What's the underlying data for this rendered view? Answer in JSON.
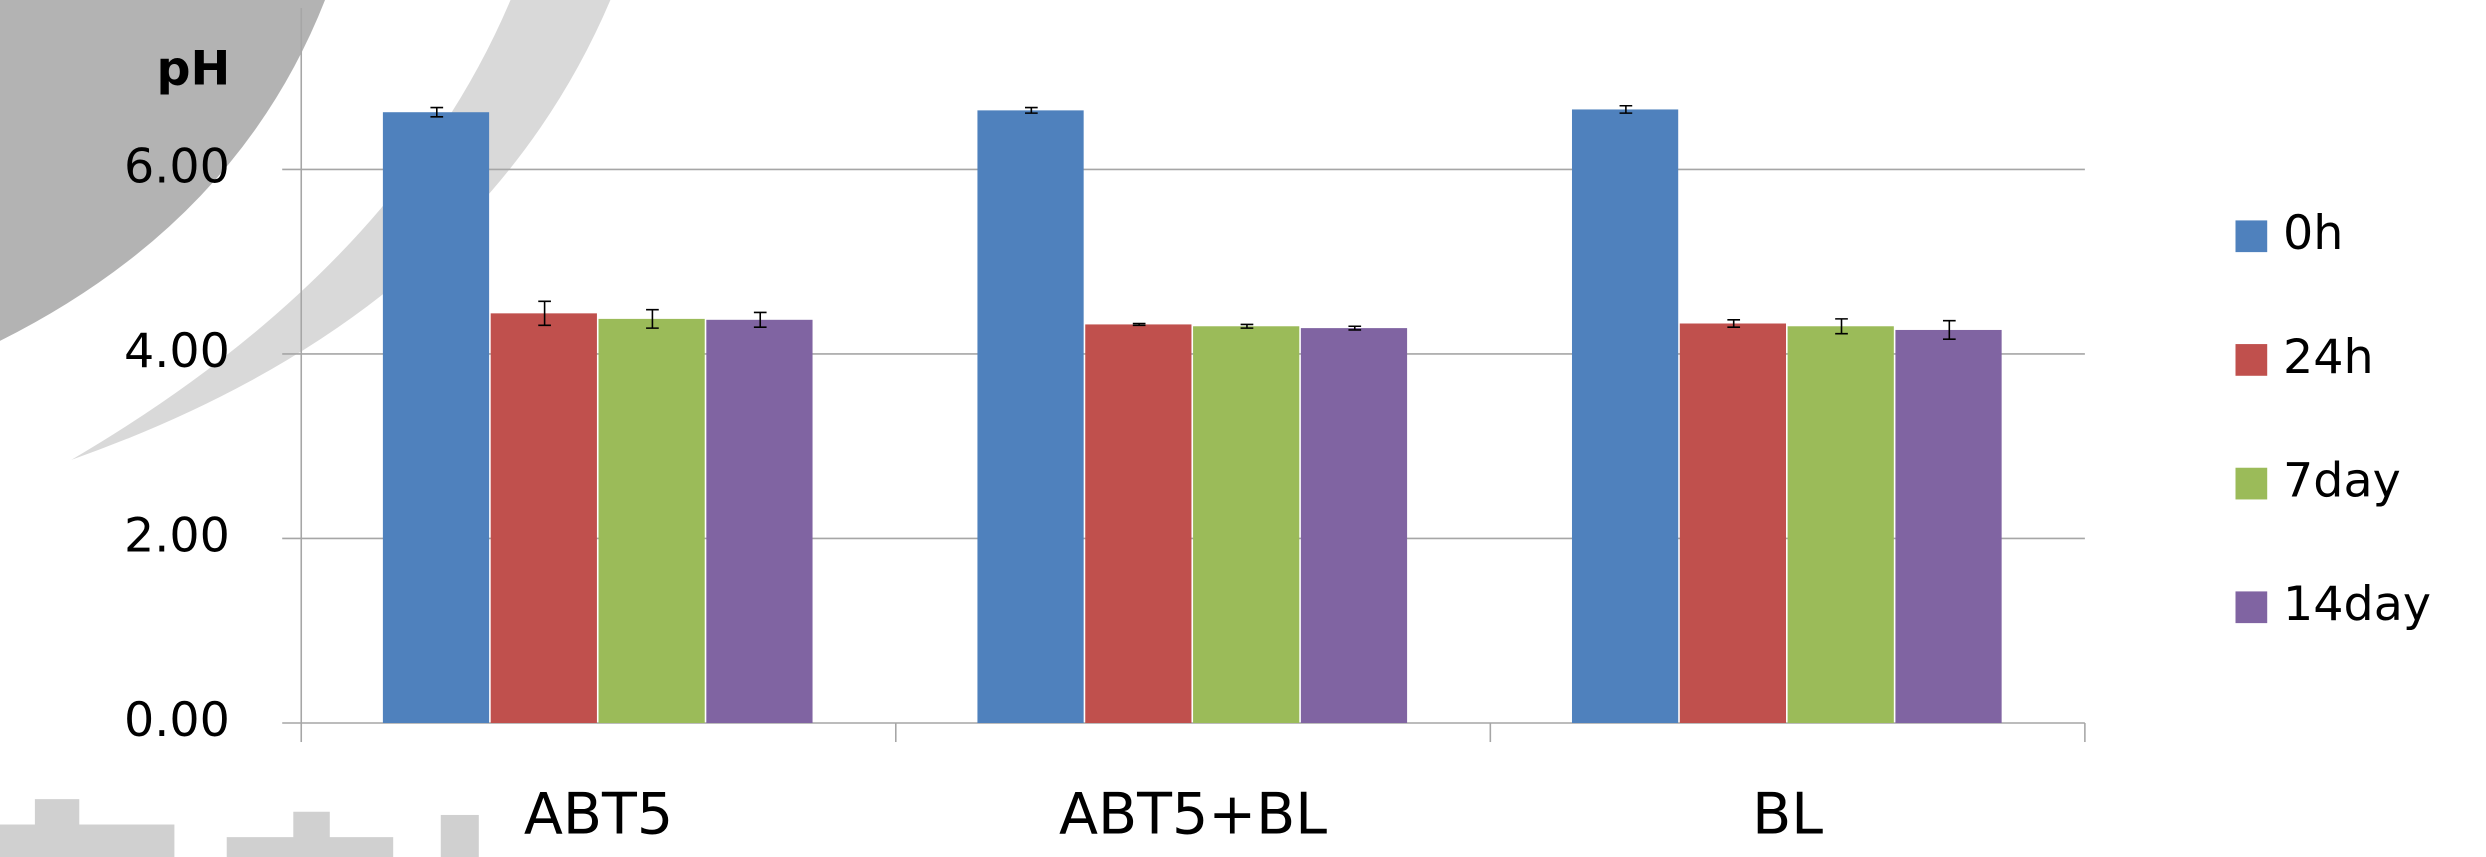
{
  "chart_data": {
    "type": "bar",
    "y_label": "pH",
    "categories": [
      "ABT5",
      "ABT5+BL",
      "BL"
    ],
    "series": [
      {
        "name": "0h",
        "color": "#4f81bd",
        "values": [
          6.62,
          6.64,
          6.65
        ],
        "errors": [
          0.05,
          0.03,
          0.04
        ]
      },
      {
        "name": "24h",
        "color": "#c0504d",
        "values": [
          4.44,
          4.32,
          4.33
        ],
        "errors": [
          0.13,
          0.01,
          0.04
        ]
      },
      {
        "name": "7day",
        "color": "#9bbb59",
        "values": [
          4.38,
          4.3,
          4.3
        ],
        "errors": [
          0.1,
          0.02,
          0.08
        ]
      },
      {
        "name": "14day",
        "color": "#8064a2",
        "values": [
          4.37,
          4.28,
          4.26
        ],
        "errors": [
          0.08,
          0.02,
          0.1
        ]
      }
    ],
    "ylim": [
      0,
      7.75
    ],
    "yticks": [
      {
        "value": 0,
        "label": "0.00"
      },
      {
        "value": 2,
        "label": "2.00"
      },
      {
        "value": 4,
        "label": "4.00"
      },
      {
        "value": 6,
        "label": "6.00"
      }
    ],
    "grid": true,
    "legend": "right"
  }
}
